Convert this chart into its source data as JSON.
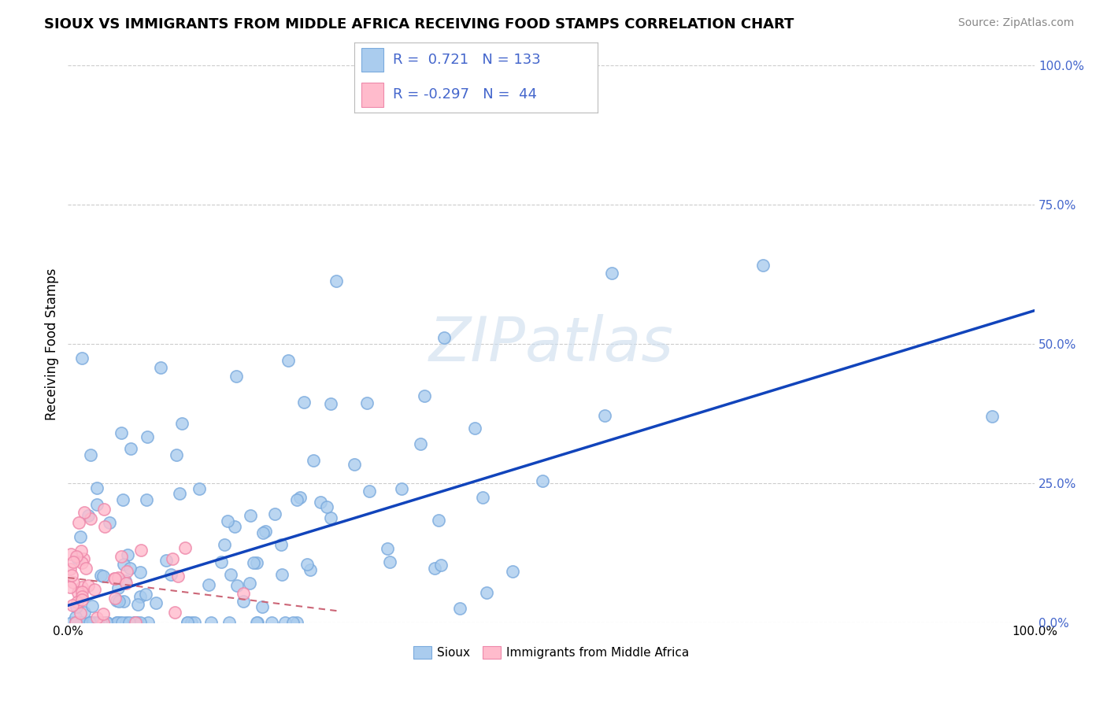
{
  "title": "SIOUX VS IMMIGRANTS FROM MIDDLE AFRICA RECEIVING FOOD STAMPS CORRELATION CHART",
  "source": "Source: ZipAtlas.com",
  "ylabel": "Receiving Food Stamps",
  "xlim": [
    0.0,
    1.0
  ],
  "ylim": [
    0.0,
    1.0
  ],
  "ytick_vals": [
    0.0,
    0.25,
    0.5,
    0.75,
    1.0
  ],
  "ytick_labels": [
    "0.0%",
    "25.0%",
    "50.0%",
    "75.0%",
    "100.0%"
  ],
  "grid_color": "#cccccc",
  "background_color": "#ffffff",
  "watermark": "ZIPatlas",
  "sioux_color": "#aaccee",
  "sioux_edge_color": "#7aaadd",
  "immigrants_color": "#ffbbcc",
  "immigrants_edge_color": "#ee88aa",
  "sioux_r": 0.721,
  "sioux_n": 133,
  "immigrants_r": -0.297,
  "immigrants_n": 44,
  "sioux_line_color": "#1144bb",
  "immigrants_line_color": "#cc6677",
  "label_color": "#4466cc",
  "title_fontsize": 13,
  "sioux_line_x0": 0.0,
  "sioux_line_y0": 0.03,
  "sioux_line_x1": 1.0,
  "sioux_line_y1": 0.56,
  "immig_line_x0": 0.0,
  "immig_line_y0": 0.08,
  "immig_line_x1": 0.28,
  "immig_line_y1": 0.02
}
